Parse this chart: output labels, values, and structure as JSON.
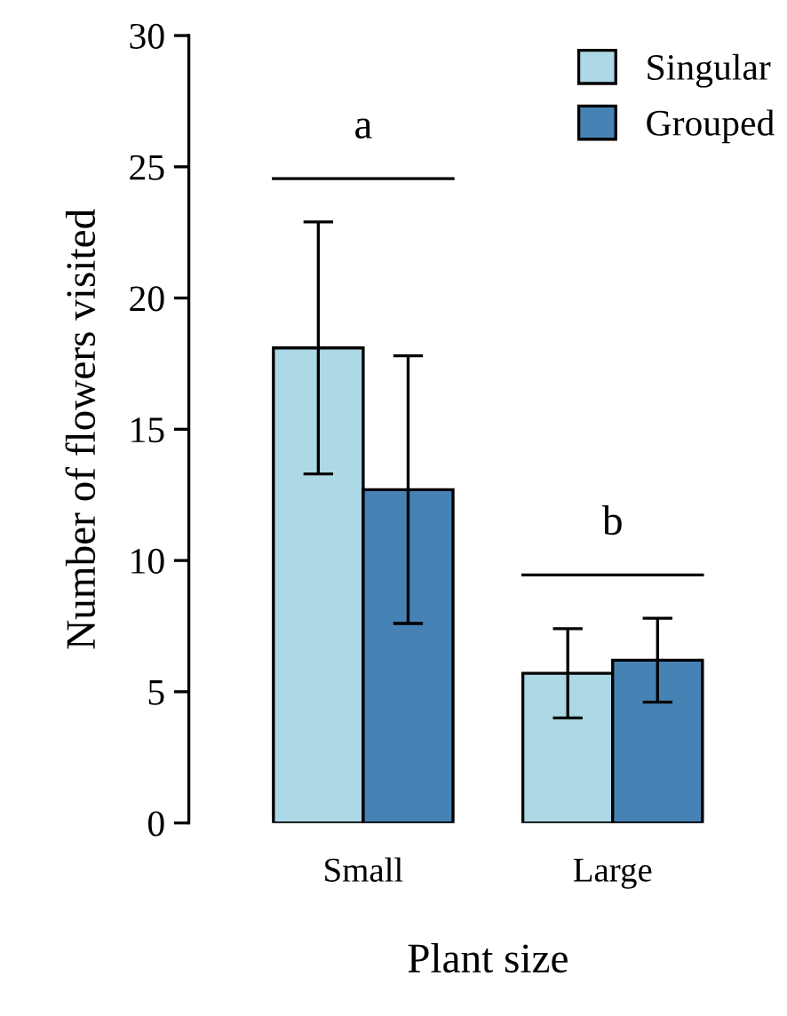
{
  "chart_data": {
    "type": "bar",
    "xlabel": "Plant size",
    "ylabel": "Number of flowers visited",
    "categories": [
      "Small",
      "Large"
    ],
    "series": [
      {
        "name": "Singular",
        "color": "#add8e6",
        "values": [
          18.1,
          5.7
        ],
        "errors": [
          [
            13.3,
            22.9
          ],
          [
            4.0,
            7.4
          ]
        ]
      },
      {
        "name": "Grouped",
        "color": "#4682b4",
        "values": [
          12.7,
          6.2
        ],
        "errors": [
          [
            7.6,
            17.8
          ],
          [
            4.6,
            7.8
          ]
        ]
      }
    ],
    "annotations": [
      "a",
      "b"
    ],
    "ylim": [
      0,
      30
    ],
    "yticks": [
      0,
      5,
      10,
      15,
      20,
      25,
      30
    ],
    "legend": "top right",
    "grid": false
  }
}
